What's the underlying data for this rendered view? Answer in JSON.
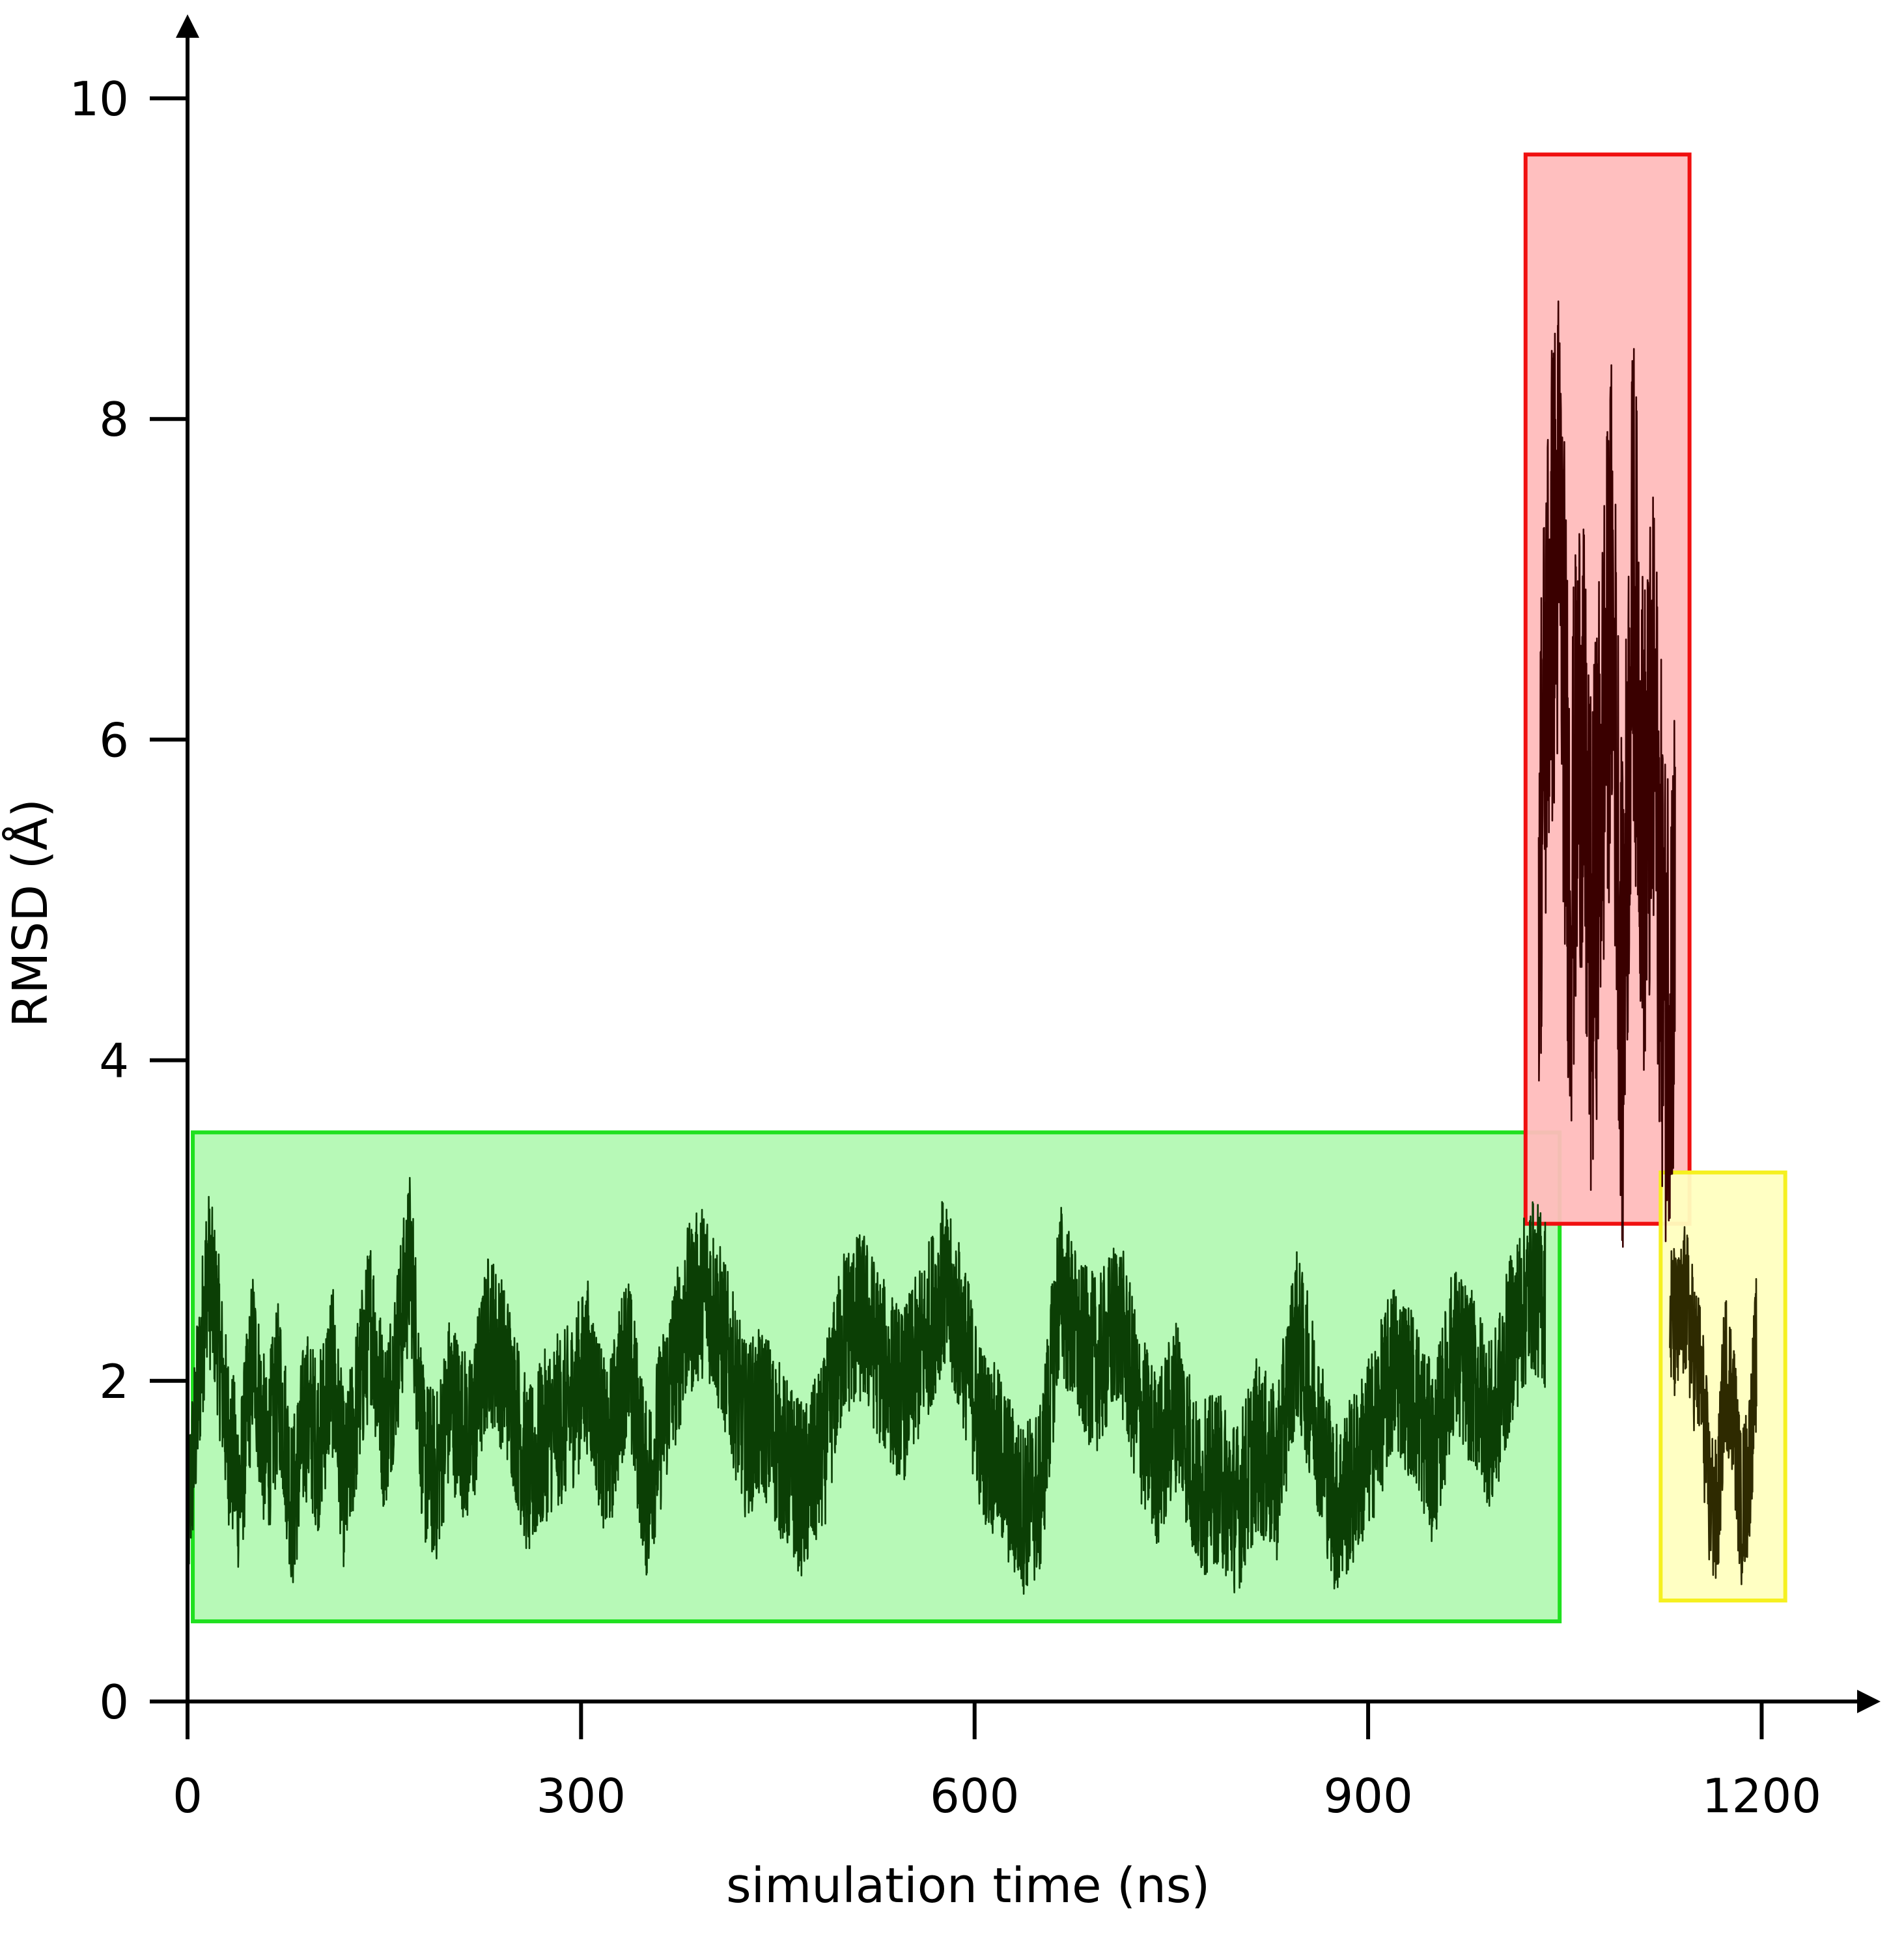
{
  "chart_data": {
    "type": "line",
    "xlabel": "simulation time (ns)",
    "ylabel": "RMSD (Å)",
    "xlim": [
      0,
      1240
    ],
    "ylim": [
      0,
      10.5
    ],
    "x_ticks": [
      0,
      300,
      600,
      900,
      1200
    ],
    "x_tick_labels": [
      "0",
      "300",
      "600",
      "900",
      "1200"
    ],
    "y_ticks": [
      0,
      2,
      4,
      6,
      8,
      10
    ],
    "y_tick_labels": [
      "0",
      "2",
      "4",
      "6",
      "8",
      "10"
    ],
    "grid": false,
    "legend": "none",
    "regions": [
      {
        "x": [
          4,
          1046
        ],
        "y": [
          0.5,
          3.55
        ],
        "fill": "#b3f9b3",
        "stroke": "#1fe01f"
      },
      {
        "x": [
          1020,
          1145
        ],
        "y": [
          2.98,
          9.65
        ],
        "fill": "#ffbcbc",
        "stroke": "#f01010"
      },
      {
        "x": [
          1123,
          1218
        ],
        "y": [
          0.63,
          3.3
        ],
        "fill": "#ffffc0",
        "stroke": "#f5f020"
      }
    ],
    "series": [
      {
        "color": "#0b3f05",
        "x": [
          0,
          8,
          15,
          22,
          30,
          40,
          50,
          60,
          70,
          80,
          90,
          100,
          110,
          120,
          130,
          140,
          150,
          160,
          170,
          180,
          190,
          200,
          215,
          230,
          245,
          260,
          275,
          290,
          305,
          320,
          335,
          350,
          365,
          380,
          395,
          410,
          425,
          440,
          455,
          470,
          485,
          500,
          515,
          530,
          545,
          560,
          575,
          590,
          605,
          620,
          635,
          650,
          665,
          680,
          695,
          710,
          725,
          740,
          755,
          770,
          785,
          800,
          815,
          830,
          845,
          860,
          875,
          890,
          905,
          920,
          935,
          950,
          965,
          980,
          995,
          1010,
          1025,
          1035
        ],
        "y": [
          1.1,
          1.9,
          2.7,
          2.4,
          1.7,
          1.3,
          2.2,
          1.5,
          2.0,
          1.2,
          1.8,
          1.6,
          2.1,
          1.3,
          1.9,
          2.4,
          1.7,
          2.2,
          2.8,
          1.5,
          1.4,
          1.9,
          1.6,
          2.3,
          2.0,
          1.4,
          1.7,
          1.8,
          2.1,
          1.5,
          2.2,
          1.3,
          1.9,
          2.4,
          2.6,
          2.2,
          1.7,
          1.8,
          1.5,
          1.3,
          1.6,
          2.3,
          2.4,
          2.1,
          1.9,
          2.2,
          2.6,
          2.3,
          1.7,
          1.5,
          1.2,
          1.3,
          2.6,
          2.2,
          2.1,
          2.4,
          1.8,
          1.5,
          1.9,
          1.3,
          1.4,
          1.2,
          1.6,
          1.4,
          2.3,
          1.8,
          1.2,
          1.4,
          1.7,
          2.1,
          1.9,
          1.5,
          2.2,
          2.0,
          1.7,
          2.3,
          2.6,
          2.5
        ]
      },
      {
        "color": "#3a0000",
        "x": [
          1030,
          1038,
          1046,
          1054,
          1062,
          1070,
          1078,
          1086,
          1094,
          1102,
          1110,
          1118,
          1126,
          1134
        ],
        "y": [
          5.2,
          6.8,
          7.4,
          5.0,
          6.2,
          4.6,
          5.8,
          6.9,
          4.2,
          7.1,
          5.4,
          6.0,
          4.4,
          4.8
        ]
      },
      {
        "color": "#2e2a00",
        "x": [
          1130,
          1136,
          1142,
          1148,
          1154,
          1160,
          1166,
          1172,
          1178,
          1184,
          1190,
          1196
        ],
        "y": [
          2.4,
          2.3,
          2.5,
          2.2,
          2.0,
          1.3,
          1.1,
          2.1,
          1.9,
          1.2,
          1.4,
          2.2
        ]
      }
    ]
  }
}
